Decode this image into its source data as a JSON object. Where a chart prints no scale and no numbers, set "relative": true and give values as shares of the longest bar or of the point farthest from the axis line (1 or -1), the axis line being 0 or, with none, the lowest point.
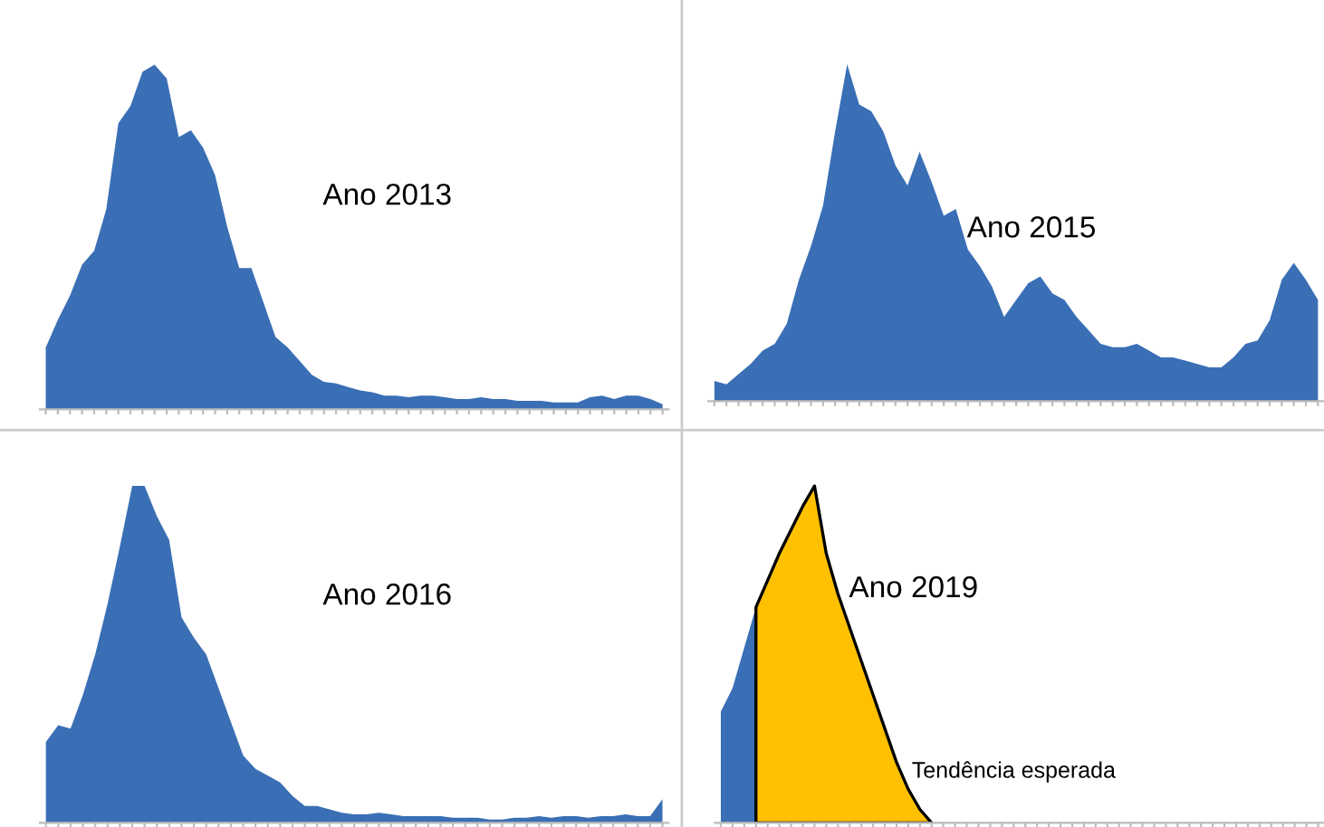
{
  "chart_data": [
    {
      "type": "area",
      "title": "Ano 2013",
      "relative": true,
      "legend": false,
      "grid": false,
      "categories": [
        null,
        null,
        null,
        null,
        null,
        null,
        null,
        null,
        null,
        null,
        null,
        null,
        null,
        null,
        null,
        null,
        null,
        null,
        null,
        null,
        null,
        null,
        null,
        null,
        null,
        null,
        null,
        null,
        null,
        null,
        null,
        null,
        null,
        null,
        null,
        null,
        null,
        null,
        null,
        null,
        null,
        null,
        null,
        null,
        null,
        null,
        null,
        null,
        null,
        null,
        null,
        null
      ],
      "series": [
        {
          "color": "#3a6fb5",
          "values": [
            0.18,
            0.26,
            0.33,
            0.42,
            0.46,
            0.58,
            0.83,
            0.88,
            0.98,
            1.0,
            0.96,
            0.79,
            0.81,
            0.76,
            0.68,
            0.53,
            0.41,
            0.41,
            0.31,
            0.21,
            0.18,
            0.14,
            0.1,
            0.08,
            0.075,
            0.065,
            0.055,
            0.05,
            0.04,
            0.04,
            0.035,
            0.04,
            0.04,
            0.035,
            0.03,
            0.03,
            0.035,
            0.03,
            0.03,
            0.025,
            0.025,
            0.025,
            0.02,
            0.02,
            0.02,
            0.035,
            0.04,
            0.03,
            0.04,
            0.04,
            0.03,
            0.015
          ]
        }
      ]
    },
    {
      "type": "area",
      "title": "Ano 2015",
      "relative": true,
      "legend": false,
      "grid": false,
      "categories": [
        null,
        null,
        null,
        null,
        null,
        null,
        null,
        null,
        null,
        null,
        null,
        null,
        null,
        null,
        null,
        null,
        null,
        null,
        null,
        null,
        null,
        null,
        null,
        null,
        null,
        null,
        null,
        null,
        null,
        null,
        null,
        null,
        null,
        null,
        null,
        null,
        null,
        null,
        null,
        null,
        null,
        null,
        null,
        null,
        null,
        null,
        null,
        null,
        null,
        null,
        null
      ],
      "series": [
        {
          "color": "#3a6fb5",
          "values": [
            0.06,
            0.05,
            0.08,
            0.11,
            0.15,
            0.17,
            0.23,
            0.36,
            0.46,
            0.58,
            0.8,
            1.0,
            0.88,
            0.86,
            0.8,
            0.7,
            0.64,
            0.74,
            0.65,
            0.55,
            0.57,
            0.45,
            0.4,
            0.34,
            0.25,
            0.3,
            0.35,
            0.37,
            0.32,
            0.3,
            0.25,
            0.21,
            0.17,
            0.16,
            0.16,
            0.17,
            0.15,
            0.13,
            0.13,
            0.12,
            0.11,
            0.1,
            0.1,
            0.13,
            0.17,
            0.18,
            0.24,
            0.36,
            0.41,
            0.36,
            0.3
          ]
        }
      ]
    },
    {
      "type": "area",
      "title": "Ano 2016",
      "relative": true,
      "legend": false,
      "grid": false,
      "categories": [
        null,
        null,
        null,
        null,
        null,
        null,
        null,
        null,
        null,
        null,
        null,
        null,
        null,
        null,
        null,
        null,
        null,
        null,
        null,
        null,
        null,
        null,
        null,
        null,
        null,
        null,
        null,
        null,
        null,
        null,
        null,
        null,
        null,
        null,
        null,
        null,
        null,
        null,
        null,
        null,
        null,
        null,
        null,
        null,
        null,
        null,
        null,
        null,
        null,
        null,
        null
      ],
      "series": [
        {
          "color": "#3a6fb5",
          "values": [
            0.24,
            0.29,
            0.28,
            0.38,
            0.5,
            0.65,
            0.82,
            1.0,
            1.0,
            0.91,
            0.84,
            0.61,
            0.55,
            0.5,
            0.4,
            0.3,
            0.2,
            0.16,
            0.14,
            0.12,
            0.08,
            0.05,
            0.05,
            0.04,
            0.03,
            0.025,
            0.025,
            0.03,
            0.025,
            0.02,
            0.02,
            0.02,
            0.02,
            0.015,
            0.015,
            0.015,
            0.01,
            0.01,
            0.015,
            0.015,
            0.02,
            0.015,
            0.02,
            0.02,
            0.015,
            0.02,
            0.02,
            0.025,
            0.02,
            0.02,
            0.07
          ]
        }
      ]
    },
    {
      "type": "area",
      "title": "Ano 2019",
      "relative": true,
      "legend": false,
      "grid": false,
      "categories": [
        null,
        null,
        null,
        null,
        null,
        null,
        null,
        null,
        null,
        null,
        null,
        null,
        null,
        null,
        null,
        null,
        null,
        null,
        null,
        null,
        null,
        null,
        null,
        null,
        null,
        null,
        null,
        null,
        null,
        null,
        null,
        null,
        null,
        null,
        null,
        null,
        null,
        null,
        null,
        null,
        null,
        null,
        null,
        null,
        null,
        null,
        null,
        null,
        null,
        null,
        null,
        null
      ],
      "series": [
        {
          "color": "#3a6fb5",
          "values": [
            0.33,
            0.4,
            0.52,
            0.64,
            null,
            null,
            null,
            null,
            null,
            null,
            null,
            null,
            null,
            null,
            null,
            null,
            null,
            null,
            null,
            null,
            null,
            null,
            null,
            null,
            null,
            null,
            null,
            null,
            null,
            null,
            null,
            null,
            null,
            null,
            null,
            null,
            null,
            null,
            null,
            null,
            null,
            null,
            null,
            null,
            null,
            null,
            null,
            null,
            null,
            null,
            null,
            null
          ]
        },
        {
          "name": "Tendência esperada",
          "color": "#ffc000",
          "values": [
            null,
            null,
            null,
            0.64,
            0.72,
            0.8,
            0.87,
            0.94,
            1.0,
            0.8,
            0.68,
            0.58,
            0.48,
            0.38,
            0.28,
            0.18,
            0.1,
            0.04,
            0.0,
            null,
            null,
            null,
            null,
            null,
            null,
            null,
            null,
            null,
            null,
            null,
            null,
            null,
            null,
            null,
            null,
            null,
            null,
            null,
            null,
            null,
            null,
            null,
            null,
            null,
            null,
            null,
            null,
            null,
            null,
            null,
            null,
            null
          ]
        }
      ]
    }
  ]
}
